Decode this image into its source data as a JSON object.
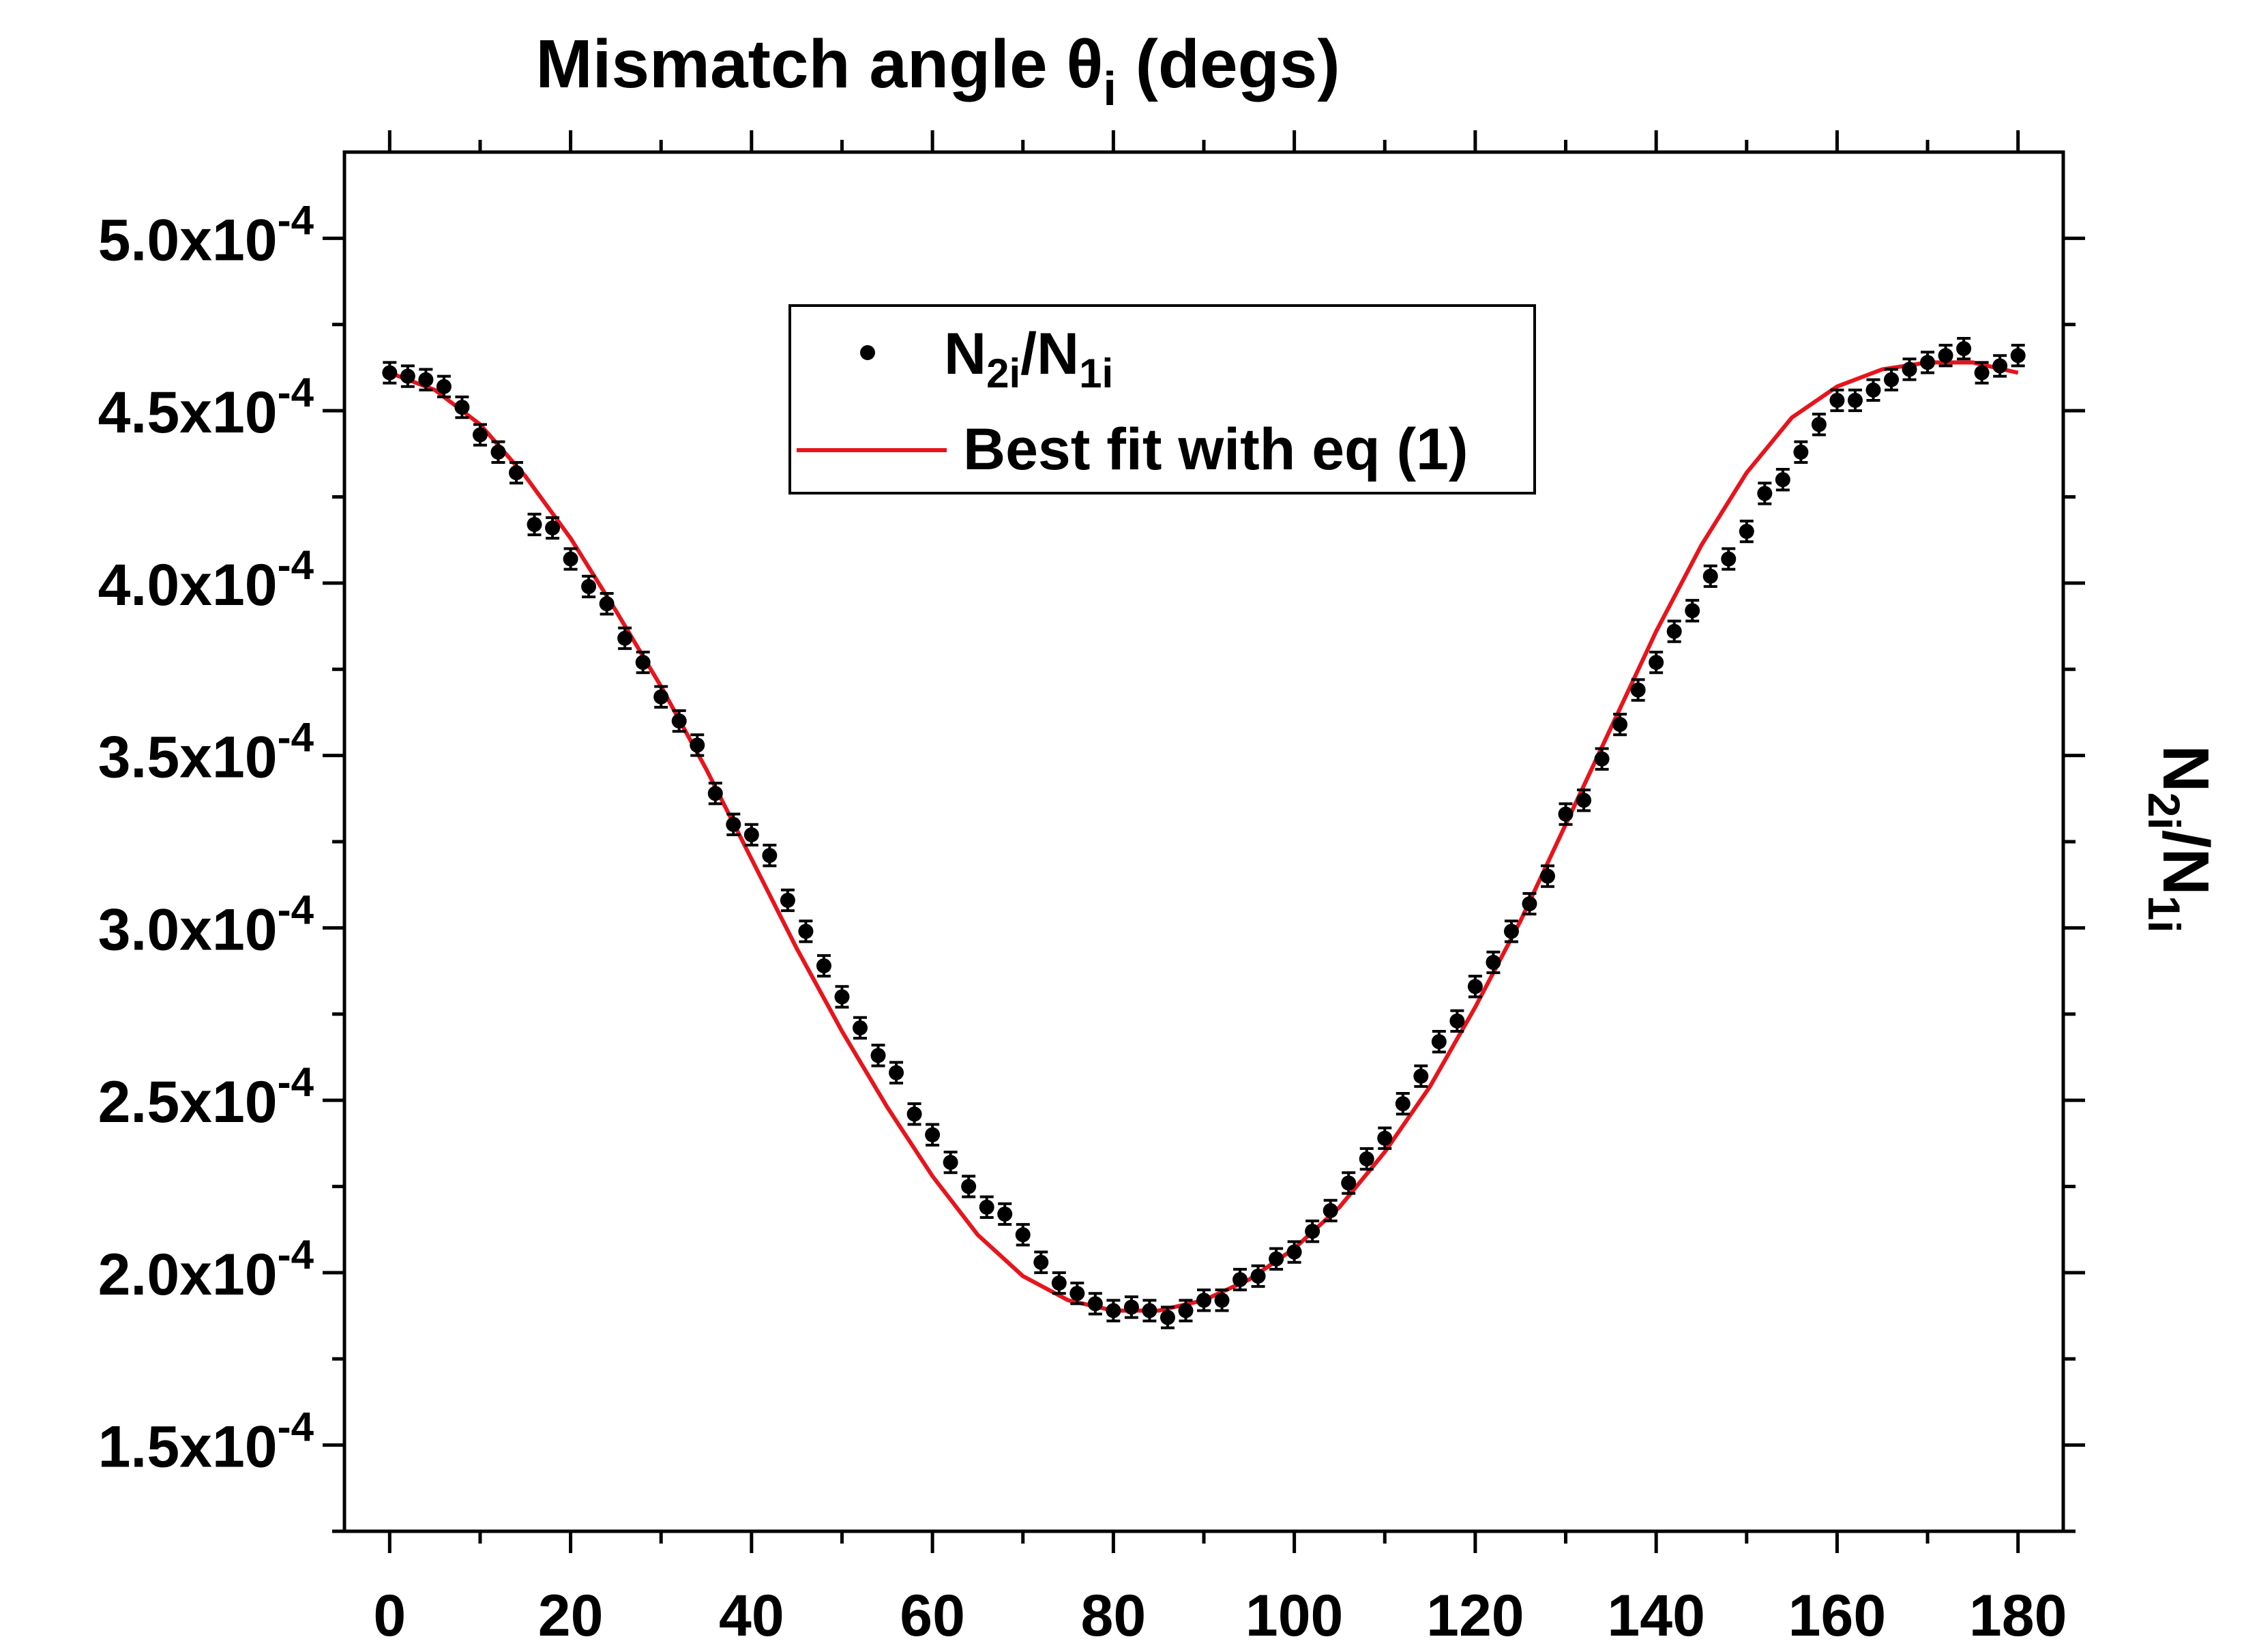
{
  "chart_data": {
    "type": "scatter",
    "title": "Mismatch angle θ",
    "title_subscript": "i",
    "title_suffix": " (degs)",
    "xlabel": "",
    "ylabel_main": "N",
    "ylabel_sub1": "2i",
    "ylabel_mid": "/N",
    "ylabel_sub2": "1i",
    "xlim": [
      -5,
      185
    ],
    "ylim": [
      0.000125,
      0.000525
    ],
    "x_ticks": [
      0,
      20,
      40,
      60,
      80,
      100,
      120,
      140,
      160,
      180
    ],
    "x_tick_labels": [
      "0",
      "20",
      "40",
      "60",
      "80",
      "100",
      "120",
      "140",
      "160",
      "180"
    ],
    "y_ticks": [
      0.00015,
      0.0002,
      0.00025,
      0.0003,
      0.00035,
      0.0004,
      0.00045,
      0.0005
    ],
    "y_tick_mantissas": [
      "1.5x10",
      "2.0x10",
      "2.5x10",
      "3.0x10",
      "3.5x10",
      "4.0x10",
      "4.5x10",
      "5.0x10"
    ],
    "y_tick_exponent": "-4",
    "legend_position": "top-center",
    "series": [
      {
        "name": "N",
        "name_sub1": "2i",
        "name_mid": "/N",
        "name_sub2": "1i",
        "kind": "points-with-errorbars",
        "color": "#000000",
        "error": 3e-06,
        "x": [
          0,
          2,
          4,
          6,
          8,
          10,
          12,
          14,
          16,
          18,
          20,
          22,
          24,
          26,
          28,
          30,
          32,
          34,
          36,
          38,
          40,
          42,
          44,
          46,
          48,
          50,
          52,
          54,
          56,
          58,
          60,
          62,
          64,
          66,
          68,
          70,
          72,
          74,
          76,
          78,
          80,
          82,
          84,
          86,
          88,
          90,
          92,
          94,
          96,
          98,
          100,
          102,
          104,
          106,
          108,
          110,
          112,
          114,
          116,
          118,
          120,
          122,
          124,
          126,
          128,
          130,
          132,
          134,
          136,
          138,
          140,
          142,
          144,
          146,
          148,
          150,
          152,
          154,
          156,
          158,
          160,
          162,
          164,
          166,
          168,
          170,
          172,
          174,
          176,
          178,
          180
        ],
        "y": [
          0.000461,
          0.00046,
          0.000459,
          0.000457,
          0.000451,
          0.000443,
          0.000438,
          0.000432,
          0.000417,
          0.000416,
          0.000407,
          0.000399,
          0.000394,
          0.000384,
          0.000377,
          0.000367,
          0.00036,
          0.000353,
          0.000339,
          0.00033,
          0.000327,
          0.000321,
          0.000308,
          0.000299,
          0.000289,
          0.00028,
          0.000271,
          0.000263,
          0.000258,
          0.000246,
          0.00024,
          0.000232,
          0.000225,
          0.000219,
          0.000217,
          0.000211,
          0.000203,
          0.000197,
          0.000194,
          0.000191,
          0.000189,
          0.00019,
          0.000189,
          0.000187,
          0.000189,
          0.000192,
          0.000192,
          0.000198,
          0.000199,
          0.000204,
          0.000206,
          0.000212,
          0.000218,
          0.000226,
          0.000233,
          0.000239,
          0.000249,
          0.000257,
          0.000267,
          0.000273,
          0.000283,
          0.00029,
          0.000299,
          0.000307,
          0.000315,
          0.000333,
          0.000337,
          0.000349,
          0.000359,
          0.000369,
          0.000377,
          0.000386,
          0.000392,
          0.000402,
          0.000407,
          0.000415,
          0.000426,
          0.00043,
          0.000438,
          0.000446,
          0.000453,
          0.000453,
          0.000456,
          0.000459,
          0.000462,
          0.000464,
          0.000466,
          0.000468,
          0.000461,
          0.000463,
          0.000466
        ]
      },
      {
        "name": "Best fit with eq (1)",
        "kind": "line",
        "color": "#e8141c",
        "x": [
          0,
          5,
          10,
          15,
          20,
          25,
          30,
          35,
          40,
          45,
          50,
          55,
          60,
          65,
          70,
          75,
          80,
          85,
          90,
          95,
          100,
          105,
          110,
          115,
          120,
          125,
          130,
          135,
          140,
          145,
          150,
          155,
          160,
          165,
          170,
          175,
          180
        ],
        "y": [
          0.000461,
          0.000456,
          0.000446,
          0.000431,
          0.000413,
          0.000392,
          0.00037,
          0.000346,
          0.00032,
          0.000294,
          0.00027,
          0.000248,
          0.000228,
          0.000211,
          0.000199,
          0.000192,
          0.000189,
          0.000189,
          0.000192,
          0.000198,
          0.000207,
          0.000219,
          0.000235,
          0.000254,
          0.000277,
          0.000302,
          0.00033,
          0.000358,
          0.000386,
          0.000411,
          0.000432,
          0.000448,
          0.000457,
          0.000462,
          0.000464,
          0.000464,
          0.000461
        ]
      }
    ]
  }
}
